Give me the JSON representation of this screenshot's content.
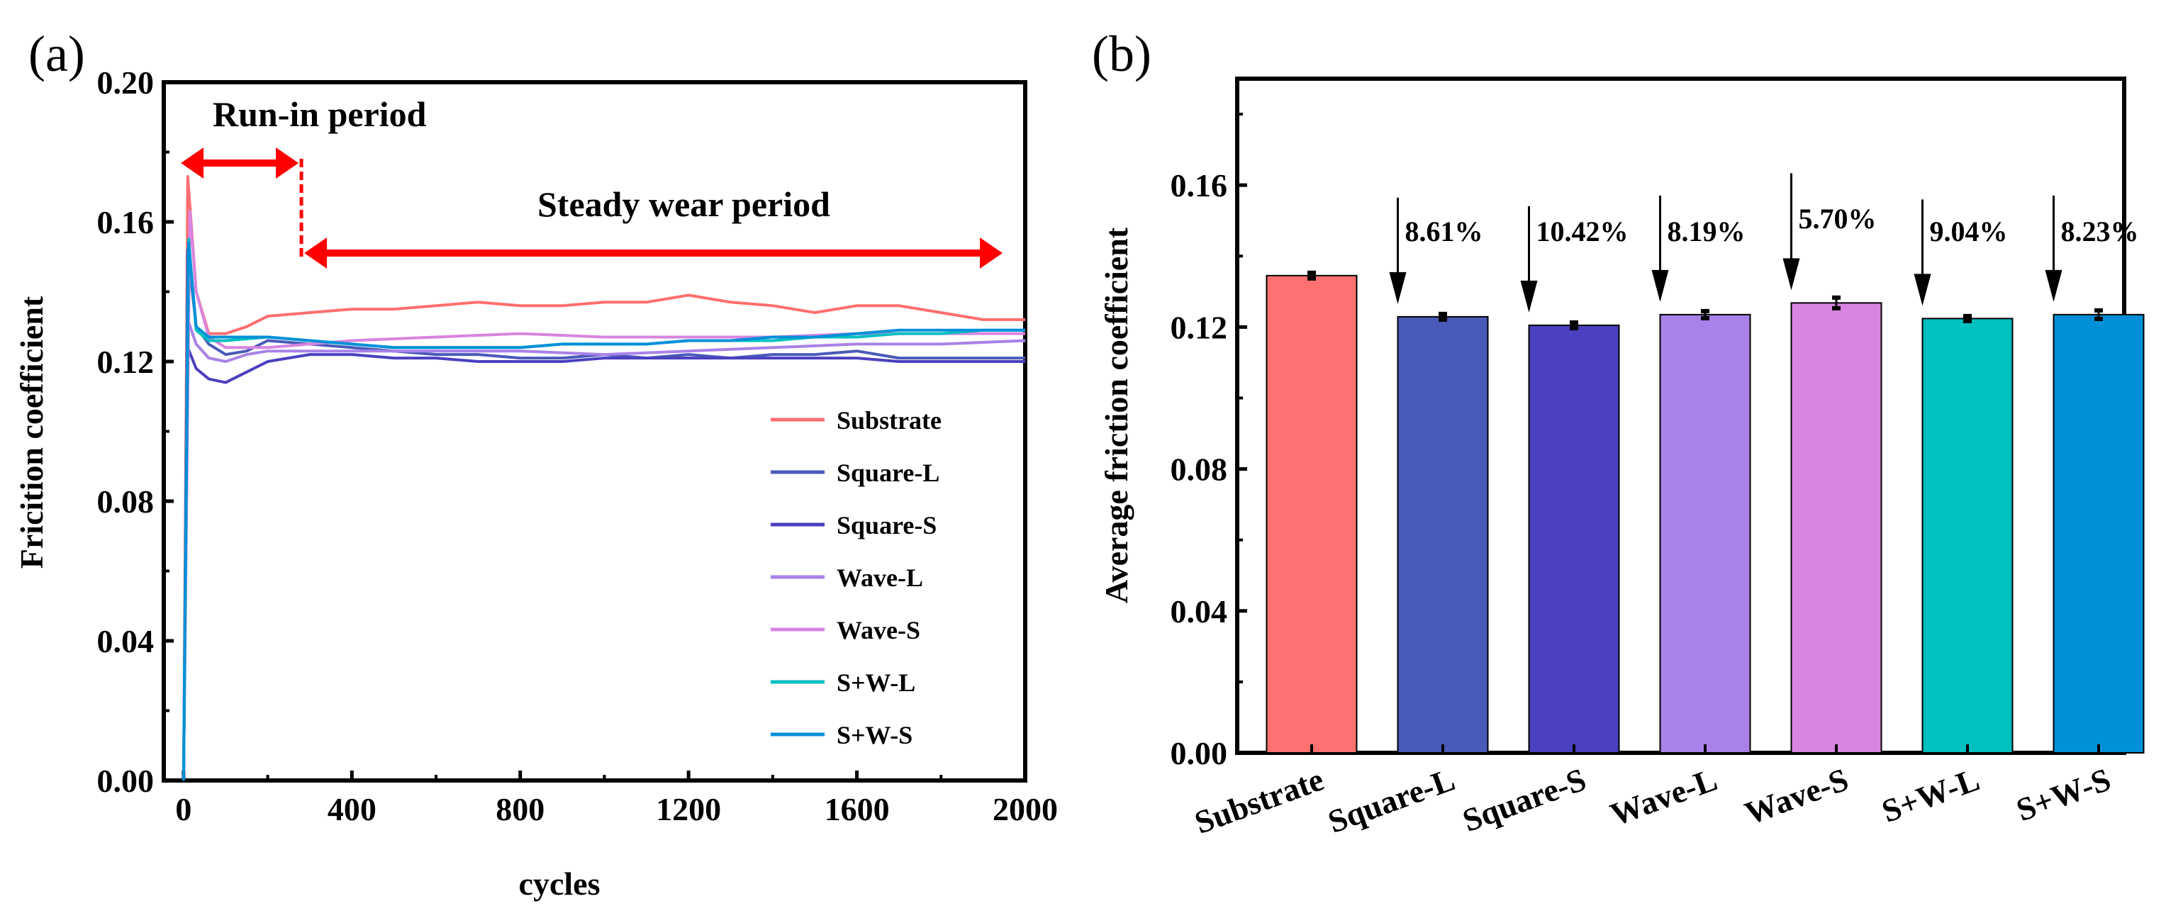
{
  "panel_labels": {
    "a": "(a)",
    "b": "(b)"
  },
  "chart_data": [
    {
      "type": "line",
      "title": "",
      "xlabel": "cycles",
      "ylabel": "Fricition coefficient",
      "xlim": [
        -47,
        2000
      ],
      "ylim": [
        0,
        0.2
      ],
      "xticks": [
        0,
        400,
        800,
        1200,
        1600,
        2000
      ],
      "xtick_labels": [
        "0",
        "400",
        "800",
        "1200",
        "1600",
        "2000"
      ],
      "yticks": [
        0,
        0.04,
        0.08,
        0.12,
        0.16,
        0.2
      ],
      "ytick_labels": [
        "0.00",
        "0.04",
        "0.08",
        "0.12",
        "0.16",
        "0.20"
      ],
      "legend_position": "lower-right",
      "annotations": {
        "run_in": "Run-in period",
        "steady": "Steady wear period",
        "run_in_end_cycle": 280
      },
      "series": [
        {
          "name": "Substrate",
          "color": "#ff6f6f",
          "x": [
            0,
            10,
            30,
            60,
            100,
            150,
            200,
            300,
            400,
            500,
            600,
            700,
            800,
            900,
            1000,
            1100,
            1200,
            1300,
            1400,
            1500,
            1600,
            1700,
            1800,
            1900,
            2000
          ],
          "y": [
            0,
            0.173,
            0.14,
            0.128,
            0.128,
            0.13,
            0.133,
            0.134,
            0.135,
            0.135,
            0.136,
            0.137,
            0.136,
            0.136,
            0.137,
            0.137,
            0.139,
            0.137,
            0.136,
            0.134,
            0.136,
            0.136,
            0.134,
            0.132,
            0.132
          ]
        },
        {
          "name": "Square-L",
          "color": "#4a5ab8",
          "x": [
            0,
            10,
            30,
            60,
            100,
            150,
            200,
            300,
            400,
            500,
            600,
            700,
            800,
            900,
            1000,
            1100,
            1200,
            1300,
            1400,
            1500,
            1600,
            1700,
            1800,
            1900,
            2000
          ],
          "y": [
            0,
            0.152,
            0.13,
            0.125,
            0.122,
            0.123,
            0.126,
            0.125,
            0.124,
            0.123,
            0.122,
            0.122,
            0.121,
            0.121,
            0.122,
            0.121,
            0.122,
            0.121,
            0.122,
            0.122,
            0.123,
            0.121,
            0.121,
            0.121,
            0.121
          ]
        },
        {
          "name": "Square-S",
          "color": "#4b40c0",
          "x": [
            0,
            10,
            30,
            60,
            100,
            150,
            200,
            300,
            400,
            500,
            600,
            700,
            800,
            900,
            1000,
            1100,
            1200,
            1300,
            1400,
            1500,
            1600,
            1700,
            1800,
            1900,
            2000
          ],
          "y": [
            0,
            0.124,
            0.118,
            0.115,
            0.114,
            0.117,
            0.12,
            0.122,
            0.122,
            0.121,
            0.121,
            0.12,
            0.12,
            0.12,
            0.121,
            0.121,
            0.121,
            0.121,
            0.121,
            0.121,
            0.121,
            0.12,
            0.12,
            0.12,
            0.12
          ]
        },
        {
          "name": "Wave-L",
          "color": "#a882e8",
          "x": [
            0,
            10,
            30,
            60,
            100,
            150,
            200,
            300,
            400,
            600,
            800,
            1000,
            1200,
            1400,
            1600,
            1800,
            2000
          ],
          "y": [
            0,
            0.132,
            0.125,
            0.121,
            0.12,
            0.122,
            0.123,
            0.123,
            0.123,
            0.123,
            0.123,
            0.122,
            0.123,
            0.124,
            0.125,
            0.125,
            0.126
          ]
        },
        {
          "name": "Wave-S",
          "color": "#d884e0",
          "x": [
            0,
            15,
            30,
            60,
            100,
            200,
            300,
            400,
            600,
            800,
            1000,
            1200,
            1400,
            1600,
            1800,
            2000
          ],
          "y": [
            0,
            0.163,
            0.14,
            0.127,
            0.124,
            0.124,
            0.125,
            0.126,
            0.127,
            0.128,
            0.127,
            0.127,
            0.127,
            0.128,
            0.128,
            0.128
          ]
        },
        {
          "name": "S+W-L",
          "color": "#00c0c0",
          "x": [
            0,
            12,
            30,
            60,
            100,
            200,
            300,
            400,
            500,
            600,
            700,
            800,
            900,
            1000,
            1100,
            1200,
            1300,
            1400,
            1500,
            1600,
            1700,
            1800,
            1900,
            2000
          ],
          "y": [
            0,
            0.155,
            0.129,
            0.126,
            0.126,
            0.127,
            0.126,
            0.125,
            0.124,
            0.124,
            0.124,
            0.124,
            0.125,
            0.125,
            0.125,
            0.126,
            0.126,
            0.126,
            0.127,
            0.127,
            0.128,
            0.128,
            0.129,
            0.129
          ]
        },
        {
          "name": "S+W-S",
          "color": "#0090d8",
          "x": [
            0,
            12,
            30,
            60,
            100,
            200,
            300,
            400,
            500,
            600,
            700,
            800,
            900,
            1000,
            1100,
            1200,
            1300,
            1400,
            1500,
            1600,
            1700,
            1800,
            1900,
            2000
          ],
          "y": [
            0,
            0.154,
            0.13,
            0.127,
            0.127,
            0.127,
            0.126,
            0.125,
            0.124,
            0.124,
            0.124,
            0.124,
            0.125,
            0.125,
            0.125,
            0.126,
            0.126,
            0.127,
            0.127,
            0.128,
            0.129,
            0.129,
            0.129,
            0.129
          ]
        }
      ]
    },
    {
      "type": "bar",
      "title": "",
      "xlabel": "",
      "ylabel": "Average friction coefficient",
      "ylim": [
        0,
        0.19
      ],
      "yticks": [
        0,
        0.04,
        0.08,
        0.12,
        0.16
      ],
      "ytick_labels": [
        "0.00",
        "0.04",
        "0.08",
        "0.12",
        "0.16"
      ],
      "categories": [
        "Substrate",
        "Square-L",
        "Square-S",
        "Wave-L",
        "Wave-S",
        "S+W-L",
        "S+W-S"
      ],
      "values": [
        0.1345,
        0.1229,
        0.1205,
        0.1235,
        0.1268,
        0.1224,
        0.1235
      ],
      "errors": [
        0.0008,
        0.0008,
        0.0008,
        0.001,
        0.0015,
        0.0007,
        0.0012
      ],
      "colors": [
        "#ff7070",
        "#4a5ab8",
        "#4b40c0",
        "#a882e8",
        "#d884e0",
        "#00c0c0",
        "#0090d8"
      ],
      "reduction_labels": [
        "",
        "8.61%",
        "10.42%",
        "8.19%",
        "5.70%",
        "9.04%",
        "8.23%"
      ]
    }
  ]
}
